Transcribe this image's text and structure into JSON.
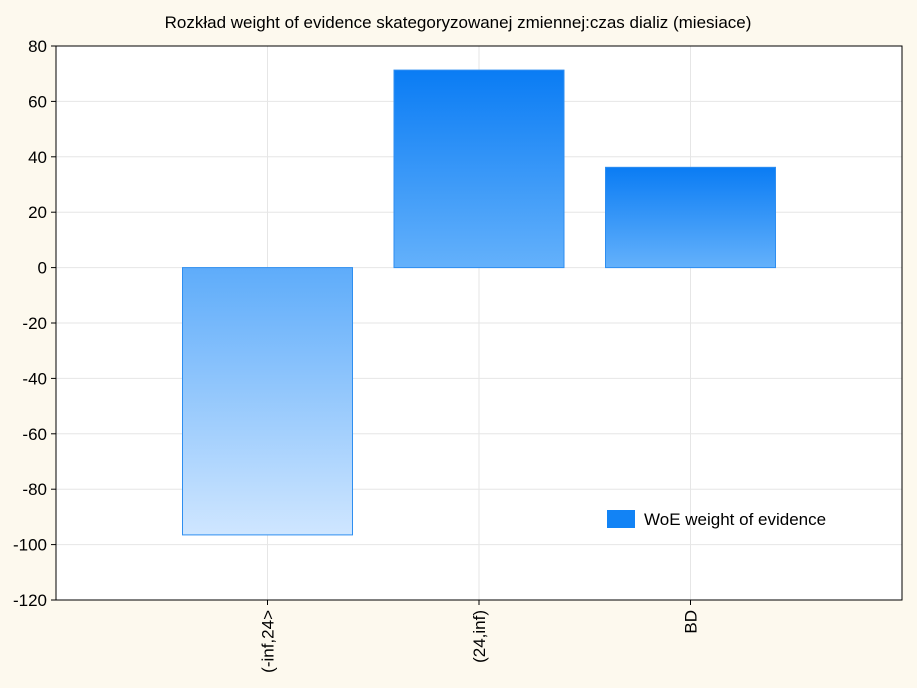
{
  "chart_data": {
    "type": "bar",
    "title": "Rozkład weight of evidence skategoryzowanej zmiennej:czas dializ (miesiace)",
    "xlabel": "",
    "ylabel": "",
    "categories": [
      "(-inf,24>",
      "(24,inf)",
      "BD"
    ],
    "series": [
      {
        "name": "WoE weight of evidence",
        "values": [
          -96.5,
          71.3,
          36.2
        ],
        "color": "#1283f5"
      }
    ],
    "ylim": [
      -120,
      80
    ],
    "yticks": [
      80,
      60,
      40,
      20,
      0,
      -20,
      -40,
      -60,
      -80,
      -100,
      -120
    ],
    "grid": true,
    "legend_position": "bottom-right"
  },
  "colors": {
    "background": "#fdf9ee",
    "plot_background": "#ffffff",
    "bar_dark": "#1283f5",
    "bar_light": "#cfe6ff",
    "grid": "#e6e6e6"
  }
}
